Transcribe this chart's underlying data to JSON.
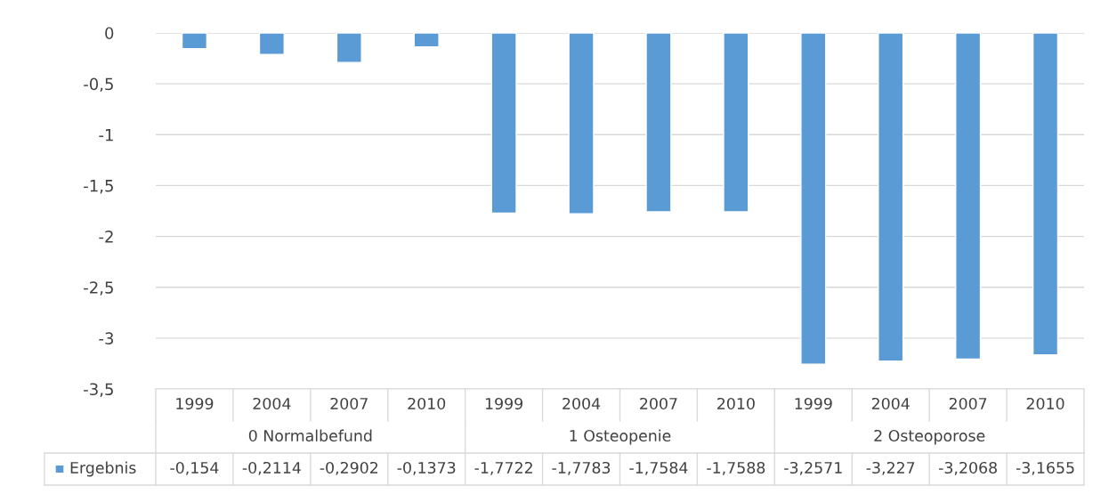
{
  "chart_data": {
    "type": "bar",
    "categories": [
      "1999",
      "2004",
      "2007",
      "2010",
      "1999",
      "2004",
      "2007",
      "2010",
      "1999",
      "2004",
      "2007",
      "2010"
    ],
    "series": [
      {
        "name": "Ergebnis",
        "color": "#5b9bd5",
        "values": [
          -0.154,
          -0.2114,
          -0.2902,
          -0.1373,
          -1.7722,
          -1.7783,
          -1.7584,
          -1.7588,
          -3.2571,
          -3.227,
          -3.2068,
          -3.1655
        ],
        "value_labels": [
          "-0,154",
          "-0,2114",
          "-0,2902",
          "-0,1373",
          "-1,7722",
          "-1,7783",
          "-1,7584",
          "-1,7588",
          "-3,2571",
          "-3,227",
          "-3,2068",
          "-3,1655"
        ]
      }
    ],
    "annotations": [
      "0 Normalbefund",
      "1 Osteopenie",
      "2 Osteoporose"
    ],
    "ylim": [
      -3.5,
      0
    ],
    "yticks": [
      0,
      {
        "value": -0.5,
        "label": "-0,5"
      },
      -1,
      {
        "value": -1.5,
        "label": "-1,5"
      },
      -2,
      {
        "value": -2.5,
        "label": "-2,5"
      },
      -3,
      {
        "value": -3.5,
        "label": "-3,5"
      }
    ],
    "grid": "y",
    "legend": "bottom"
  }
}
